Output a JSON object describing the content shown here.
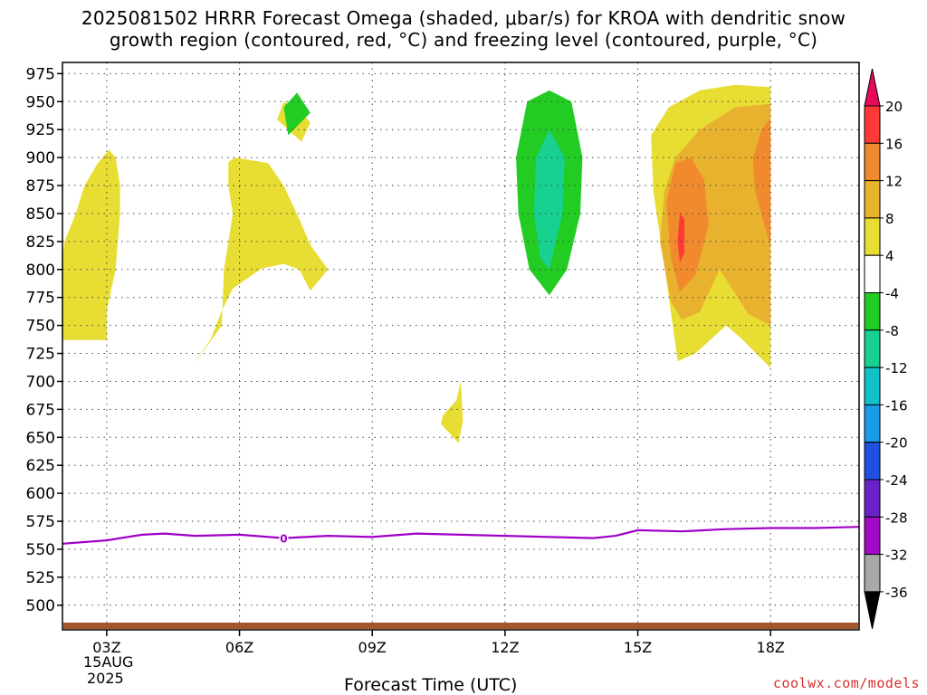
{
  "title": {
    "line1": "2025081502 HRRR Forecast Omega (shaded, μbar/s) for KROA with dendritic snow",
    "line2": "growth region (contoured, red, °C) and freezing level (contoured, purple, °C)"
  },
  "footer": {
    "xlabel": "Forecast Time (UTC)",
    "date_line1": "15AUG",
    "date_line2": "2025",
    "credit": "coolwx.com/models"
  },
  "chart_data": {
    "type": "contour",
    "x": {
      "unit": "hour UTC",
      "range": [
        2,
        20
      ],
      "ticks": [
        3,
        6,
        9,
        12,
        15,
        18
      ],
      "tick_labels": [
        "03Z",
        "06Z",
        "09Z",
        "12Z",
        "15Z",
        "18Z"
      ]
    },
    "y": {
      "unit": "hPa",
      "range": [
        985,
        478
      ],
      "ticks": [
        500,
        525,
        550,
        575,
        600,
        625,
        650,
        675,
        700,
        725,
        750,
        775,
        800,
        825,
        850,
        875,
        900,
        925,
        950,
        975
      ]
    },
    "grid": true,
    "colorbar": {
      "labels": [
        "20",
        "16",
        "12",
        "8",
        "4",
        "-4",
        "-8",
        "-12",
        "-16",
        "-20",
        "-24",
        "-28",
        "-32",
        "-36"
      ],
      "colors": [
        "#e8085c",
        "#ff3838",
        "#f08a2c",
        "#e8b22e",
        "#e8dd32",
        "#ffffff",
        "#22cc22",
        "#18d090",
        "#12c0c8",
        "#1a9ae8",
        "#2050e0",
        "#6a22c8",
        "#a20ac8",
        "#a8a8a8",
        "#000000"
      ]
    },
    "freezing_level": {
      "label": "0",
      "color": "#a000c8",
      "label_point": [
        7.0,
        560
      ],
      "points": [
        [
          2,
          555
        ],
        [
          3,
          558
        ],
        [
          3.8,
          563
        ],
        [
          4.3,
          564
        ],
        [
          5,
          562
        ],
        [
          6,
          563
        ],
        [
          7,
          560
        ],
        [
          8,
          562
        ],
        [
          9,
          561
        ],
        [
          10,
          564
        ],
        [
          11,
          563
        ],
        [
          12,
          562
        ],
        [
          13,
          561
        ],
        [
          14,
          560
        ],
        [
          14.5,
          562
        ],
        [
          15,
          567
        ],
        [
          16,
          566
        ],
        [
          17,
          568
        ],
        [
          18,
          569
        ],
        [
          19,
          569
        ],
        [
          20,
          570
        ]
      ]
    },
    "ground_color": "#a5552c",
    "regions": [
      {
        "value": "4 to 8",
        "color": "#e8dd32",
        "points": [
          [
            2.0,
            737
          ],
          [
            3.0,
            737
          ],
          [
            3.0,
            763
          ],
          [
            3.2,
            800
          ],
          [
            3.3,
            850
          ],
          [
            3.3,
            875
          ],
          [
            3.2,
            900
          ],
          [
            3.05,
            907
          ],
          [
            2.8,
            895
          ],
          [
            2.5,
            875
          ],
          [
            2.3,
            850
          ],
          [
            2.05,
            825
          ],
          [
            1.95,
            800
          ],
          [
            2.0,
            760
          ]
        ]
      },
      {
        "value": "4 to 8",
        "color": "#e8dd32",
        "points": [
          [
            4.95,
            714
          ],
          [
            5.35,
            738
          ],
          [
            5.6,
            763
          ],
          [
            5.85,
            783
          ],
          [
            6.5,
            801
          ],
          [
            7.0,
            805
          ],
          [
            7.35,
            800
          ],
          [
            7.6,
            781
          ],
          [
            8.0,
            800
          ],
          [
            7.6,
            822
          ],
          [
            7.35,
            845
          ],
          [
            7.0,
            875
          ],
          [
            6.65,
            895
          ],
          [
            5.9,
            900
          ],
          [
            5.75,
            896
          ],
          [
            5.75,
            875
          ],
          [
            5.85,
            850
          ],
          [
            5.65,
            800
          ],
          [
            5.6,
            750
          ]
        ]
      },
      {
        "value": "4 to 8",
        "color": "#e8dd32",
        "points": [
          [
            7.4,
            914
          ],
          [
            7.6,
            931
          ],
          [
            7.4,
            941
          ],
          [
            7.0,
            950
          ],
          [
            6.85,
            934
          ]
        ]
      },
      {
        "value": "4 to 8",
        "color": "#e8dd32",
        "points": [
          [
            10.55,
            662
          ],
          [
            10.95,
            645
          ],
          [
            11.05,
            665
          ],
          [
            11.0,
            700
          ],
          [
            10.9,
            683
          ],
          [
            10.6,
            670
          ]
        ]
      },
      {
        "value": "4 to 8",
        "color": "#e8dd32",
        "points": [
          [
            15.9,
            718
          ],
          [
            16.3,
            725
          ],
          [
            17.0,
            750
          ],
          [
            17.35,
            738
          ],
          [
            18.0,
            712
          ],
          [
            18.0,
            963
          ],
          [
            17.2,
            965
          ],
          [
            16.4,
            960
          ],
          [
            15.7,
            945
          ],
          [
            15.3,
            920
          ],
          [
            15.35,
            870
          ],
          [
            15.65,
            790
          ]
        ]
      },
      {
        "value": "8 to 12",
        "color": "#e8b22e",
        "points": [
          [
            15.75,
            771
          ],
          [
            16.0,
            755
          ],
          [
            16.4,
            762
          ],
          [
            16.85,
            800
          ],
          [
            17.5,
            760
          ],
          [
            18.0,
            750
          ],
          [
            18.0,
            948
          ],
          [
            17.2,
            945
          ],
          [
            16.4,
            925
          ],
          [
            15.85,
            900
          ],
          [
            15.6,
            870
          ],
          [
            15.5,
            825
          ]
        ]
      },
      {
        "value": "12 to 16",
        "color": "#f08a2c",
        "points": [
          [
            15.95,
            780
          ],
          [
            16.3,
            795
          ],
          [
            16.6,
            840
          ],
          [
            16.5,
            880
          ],
          [
            16.2,
            900
          ],
          [
            15.85,
            895
          ],
          [
            15.65,
            860
          ],
          [
            15.75,
            810
          ]
        ]
      },
      {
        "value": "12 to 16",
        "color": "#f08a2c",
        "points": [
          [
            18.0,
            820
          ],
          [
            18.0,
            935
          ],
          [
            17.8,
            925
          ],
          [
            17.6,
            900
          ],
          [
            17.65,
            870
          ]
        ]
      },
      {
        "value": "16 to 20",
        "color": "#ff3838",
        "points": [
          [
            15.95,
            806
          ],
          [
            16.05,
            815
          ],
          [
            16.05,
            845
          ],
          [
            15.95,
            850
          ],
          [
            15.9,
            825
          ]
        ]
      },
      {
        "value": "-8 to -4",
        "color": "#22cc22",
        "points": [
          [
            7.1,
            920
          ],
          [
            7.6,
            940
          ],
          [
            7.3,
            958
          ],
          [
            7.0,
            945
          ]
        ]
      },
      {
        "value": "-8 to -4",
        "color": "#22cc22",
        "points": [
          [
            13.0,
            777
          ],
          [
            13.4,
            800
          ],
          [
            13.7,
            850
          ],
          [
            13.75,
            900
          ],
          [
            13.5,
            950
          ],
          [
            13.0,
            960
          ],
          [
            12.5,
            950
          ],
          [
            12.25,
            900
          ],
          [
            12.3,
            850
          ],
          [
            12.55,
            800
          ]
        ]
      },
      {
        "value": "-12 to -8",
        "color": "#18d090",
        "points": [
          [
            13.0,
            800
          ],
          [
            13.3,
            850
          ],
          [
            13.35,
            900
          ],
          [
            13.0,
            925
          ],
          [
            12.7,
            900
          ],
          [
            12.65,
            850
          ],
          [
            12.8,
            810
          ]
        ]
      }
    ]
  }
}
